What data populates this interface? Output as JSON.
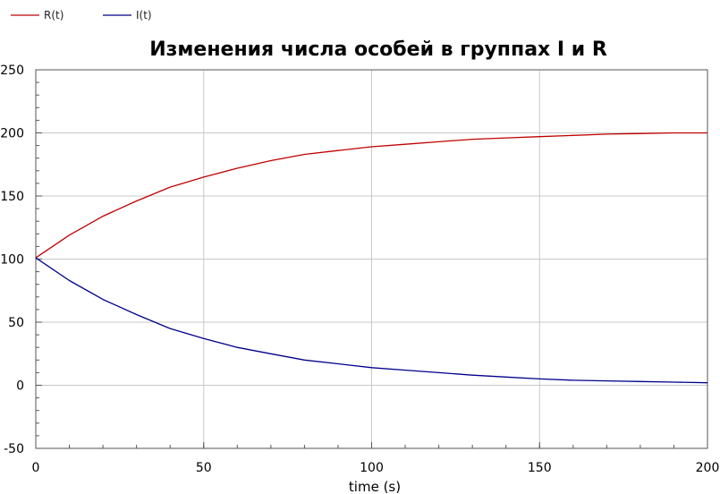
{
  "chart_data": {
    "type": "line",
    "title": "Изменения числа особей в группах I и R",
    "xlabel": "time (s)",
    "ylabel": "",
    "xlim": [
      0,
      200
    ],
    "ylim": [
      -50,
      250
    ],
    "xticks": [
      0,
      50,
      100,
      150,
      200
    ],
    "yticks": [
      -50,
      0,
      50,
      100,
      150,
      200,
      250
    ],
    "grid": true,
    "legend_position": "top-left",
    "series": [
      {
        "name": "R(t)",
        "color": "#c00000",
        "x": [
          0,
          10,
          20,
          30,
          40,
          50,
          60,
          70,
          80,
          90,
          100,
          110,
          120,
          130,
          140,
          150,
          160,
          170,
          180,
          190,
          200
        ],
        "values": [
          101,
          119,
          134,
          146,
          157,
          165,
          172,
          178,
          183,
          186,
          189,
          191,
          193,
          195,
          196,
          197,
          198,
          199,
          199.5,
          200,
          200
        ]
      },
      {
        "name": "I(t)",
        "color": "#00008b",
        "x": [
          0,
          10,
          20,
          30,
          40,
          50,
          60,
          70,
          80,
          90,
          100,
          110,
          120,
          130,
          140,
          150,
          160,
          170,
          180,
          190,
          200
        ],
        "values": [
          101,
          83,
          68,
          56,
          45,
          37,
          30,
          25,
          20,
          17,
          14,
          12,
          10,
          8,
          6.5,
          5,
          4,
          3.5,
          3,
          2.5,
          2
        ]
      }
    ]
  }
}
